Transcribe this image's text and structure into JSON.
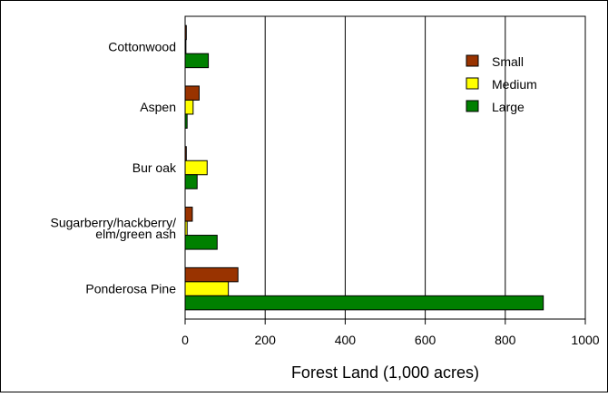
{
  "chart_data": {
    "type": "bar",
    "orientation": "horizontal",
    "categories": [
      "Cottonwood",
      "Aspen",
      "Bur oak",
      "Sugarberry/hackberry/ elm/green ash",
      "Ponderosa Pine"
    ],
    "category_lines": [
      [
        "Cottonwood"
      ],
      [
        "Aspen"
      ],
      [
        "Bur oak"
      ],
      [
        "Sugarberry/hackberry/",
        "elm/green ash"
      ],
      [
        "Ponderosa Pine"
      ]
    ],
    "series": [
      {
        "name": "Small",
        "color": "#993300",
        "values": [
          3,
          35,
          3,
          18,
          132
        ]
      },
      {
        "name": "Medium",
        "color": "#FFFF00",
        "values": [
          2,
          20,
          55,
          5,
          108
        ]
      },
      {
        "name": "Large",
        "color": "#008000",
        "values": [
          58,
          5,
          30,
          80,
          895
        ]
      }
    ],
    "xlabel": "Forest Land (1,000 acres)",
    "ylabel": "",
    "xlim": [
      0,
      1000
    ],
    "xticks": [
      0,
      200,
      400,
      600,
      800,
      1000
    ],
    "grid": "vertical",
    "legend_position": "top-right"
  }
}
